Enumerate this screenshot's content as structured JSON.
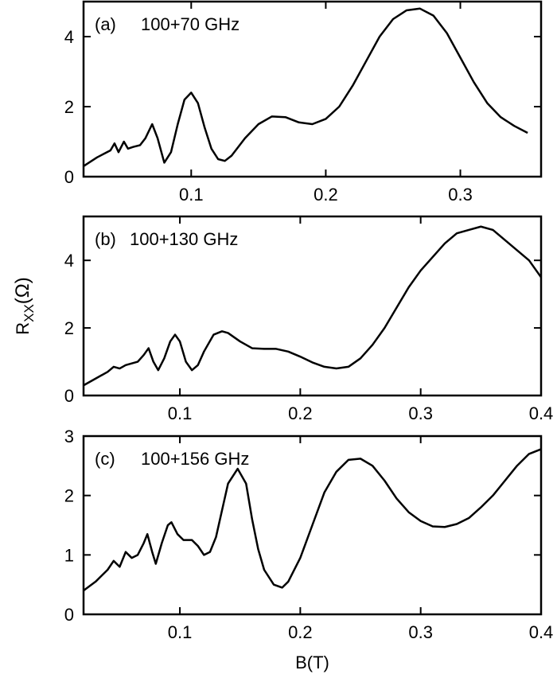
{
  "chart_data": [
    {
      "type": "line",
      "panel_label": "(a)",
      "annotation": "100+70 GHz",
      "color": "#000000",
      "xlim": [
        0.02,
        0.36
      ],
      "ylim": [
        0,
        5
      ],
      "xticks": [
        0.1,
        0.2,
        0.3
      ],
      "yticks": [
        0,
        2,
        4
      ],
      "x": [
        0.02,
        0.03,
        0.035,
        0.04,
        0.043,
        0.046,
        0.05,
        0.053,
        0.057,
        0.062,
        0.066,
        0.071,
        0.075,
        0.08,
        0.085,
        0.09,
        0.095,
        0.1,
        0.105,
        0.11,
        0.115,
        0.12,
        0.125,
        0.13,
        0.14,
        0.15,
        0.16,
        0.17,
        0.18,
        0.19,
        0.2,
        0.21,
        0.22,
        0.23,
        0.24,
        0.25,
        0.26,
        0.27,
        0.28,
        0.29,
        0.3,
        0.31,
        0.32,
        0.33,
        0.34,
        0.35
      ],
      "values": [
        0.3,
        0.55,
        0.65,
        0.75,
        0.95,
        0.7,
        1.0,
        0.8,
        0.85,
        0.9,
        1.1,
        1.5,
        1.1,
        0.4,
        0.7,
        1.5,
        2.2,
        2.4,
        2.1,
        1.4,
        0.8,
        0.5,
        0.45,
        0.6,
        1.1,
        1.5,
        1.72,
        1.7,
        1.55,
        1.5,
        1.65,
        2.0,
        2.6,
        3.3,
        4.0,
        4.5,
        4.75,
        4.8,
        4.6,
        4.1,
        3.4,
        2.7,
        2.1,
        1.7,
        1.45,
        1.25
      ]
    },
    {
      "type": "line",
      "panel_label": "(b)",
      "annotation": "100+130 GHz",
      "color": "#000000",
      "ylabel": [
        "R",
        "XX",
        "(Ω)"
      ],
      "xlim": [
        0.02,
        0.4
      ],
      "ylim": [
        0,
        5.3
      ],
      "xticks": [
        0.1,
        0.2,
        0.3,
        0.4
      ],
      "yticks": [
        0,
        2,
        4
      ],
      "x": [
        0.02,
        0.03,
        0.04,
        0.045,
        0.05,
        0.055,
        0.06,
        0.065,
        0.07,
        0.074,
        0.078,
        0.082,
        0.087,
        0.092,
        0.096,
        0.1,
        0.105,
        0.11,
        0.115,
        0.12,
        0.128,
        0.135,
        0.14,
        0.15,
        0.16,
        0.17,
        0.18,
        0.19,
        0.2,
        0.21,
        0.22,
        0.23,
        0.24,
        0.25,
        0.26,
        0.27,
        0.28,
        0.29,
        0.3,
        0.31,
        0.32,
        0.33,
        0.34,
        0.35,
        0.36,
        0.37,
        0.38,
        0.39,
        0.4
      ],
      "values": [
        0.3,
        0.5,
        0.7,
        0.85,
        0.8,
        0.9,
        0.95,
        1.0,
        1.2,
        1.4,
        1.0,
        0.75,
        1.1,
        1.6,
        1.8,
        1.6,
        1.0,
        0.75,
        0.9,
        1.3,
        1.8,
        1.9,
        1.85,
        1.6,
        1.4,
        1.38,
        1.38,
        1.3,
        1.15,
        0.98,
        0.85,
        0.8,
        0.85,
        1.1,
        1.5,
        2.0,
        2.6,
        3.2,
        3.7,
        4.1,
        4.5,
        4.8,
        4.9,
        5.0,
        4.9,
        4.6,
        4.3,
        4.0,
        3.5
      ]
    },
    {
      "type": "line",
      "panel_label": "(c)",
      "annotation": "100+156 GHz",
      "color": "#000000",
      "xlabel": "B(T)",
      "xlim": [
        0.02,
        0.4
      ],
      "ylim": [
        0,
        3
      ],
      "xticks": [
        0.1,
        0.2,
        0.3,
        0.4
      ],
      "yticks": [
        0,
        1,
        2,
        3
      ],
      "x": [
        0.02,
        0.03,
        0.04,
        0.045,
        0.05,
        0.055,
        0.06,
        0.065,
        0.07,
        0.073,
        0.077,
        0.08,
        0.085,
        0.09,
        0.093,
        0.098,
        0.103,
        0.11,
        0.115,
        0.12,
        0.125,
        0.13,
        0.135,
        0.14,
        0.148,
        0.155,
        0.16,
        0.165,
        0.17,
        0.178,
        0.185,
        0.19,
        0.2,
        0.21,
        0.22,
        0.23,
        0.24,
        0.25,
        0.26,
        0.27,
        0.28,
        0.29,
        0.3,
        0.31,
        0.32,
        0.33,
        0.34,
        0.35,
        0.36,
        0.37,
        0.38,
        0.39,
        0.4
      ],
      "values": [
        0.4,
        0.55,
        0.75,
        0.9,
        0.8,
        1.05,
        0.95,
        1.0,
        1.2,
        1.35,
        1.05,
        0.85,
        1.2,
        1.5,
        1.55,
        1.35,
        1.25,
        1.25,
        1.15,
        1.0,
        1.05,
        1.3,
        1.75,
        2.2,
        2.45,
        2.2,
        1.6,
        1.1,
        0.75,
        0.5,
        0.45,
        0.55,
        0.95,
        1.5,
        2.05,
        2.4,
        2.6,
        2.62,
        2.5,
        2.25,
        1.95,
        1.72,
        1.57,
        1.48,
        1.47,
        1.52,
        1.62,
        1.8,
        2.0,
        2.25,
        2.5,
        2.7,
        2.78
      ]
    }
  ]
}
